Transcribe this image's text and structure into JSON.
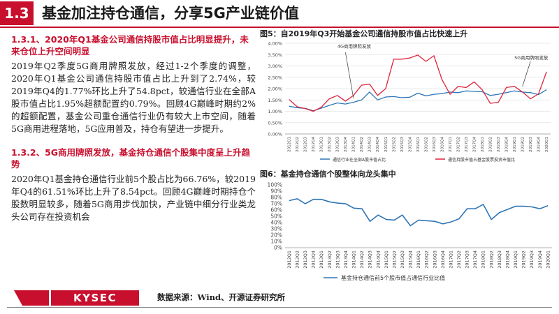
{
  "header": {
    "section_number": "1.3",
    "title": "基金加注持仓通信，分享5G产业链价值"
  },
  "left": {
    "s1_title": "1.3.1、2020年Q1基金公司通信持股市值占比明显提升，未来仓位上升空间明显",
    "s1_body": "2019年Q2季度5G商用牌照发放，经过1-2个季度的调整，2020年Q1基金公司通信持股市值占比上升到了2.74%，较2019年Q4的1.77%环比上升了54.8pct，较通信行业在全部A股市值占比1.95%超额配置约0.79%。回顾4G巅峰时期约2%的超额配置，基金公司重仓通信行业仍有较大上市空间，随着5G商用进程落地，5G应用普及，持仓有望进一步提升。",
    "s2_title": "1.3.2、5G商用牌照发放，基金持仓通信个股集中度呈上升趋势",
    "s2_body": "2020年Q1基金持仓通信行业前5个股占比为66.76%，较2019年Q4的61.51%环比上升了8.54pct。回顾4G巅峰时期持仓个股数明显较多，随着5G商用步伐加快，产业链中细分行业类龙头公司存在投资机会"
  },
  "fig5": {
    "title": "图5：自2019年Q3开始基金公司通信持股市值占比快速上升"
  },
  "fig6": {
    "title": "图6：基金持仓通信个股整体向龙头集中"
  },
  "footer": {
    "logo": "KYSEC",
    "source": "数据来源：Wind、开源证券研究所"
  },
  "chart_data": [
    {
      "type": "line",
      "title": "",
      "ylim": [
        0,
        4
      ],
      "y_ticks": [
        "0.00%",
        "0.50%",
        "1.00%",
        "1.50%",
        "2.00%",
        "2.50%",
        "3.00%",
        "3.50%",
        "4.00%"
      ],
      "x": [
        "2012Q1",
        "2012Q2",
        "2012Q3",
        "2012Q4",
        "2013Q1",
        "2013Q2",
        "2013Q3",
        "2013Q4",
        "2014Q1",
        "2014Q2",
        "2014Q3",
        "2014Q4",
        "2015Q1",
        "2015Q2",
        "2015Q3",
        "2015Q4",
        "2016Q1",
        "2016Q2",
        "2016Q3",
        "2016Q4",
        "2017Q1",
        "2017Q2",
        "2017Q3",
        "2017Q4",
        "2018Q1",
        "2018Q2",
        "2018Q3",
        "2018Q4",
        "2019Q1",
        "2019Q2",
        "2019Q3",
        "2019Q4",
        "2020Q1"
      ],
      "series": [
        {
          "name": "通信行业在全部A股市值占比",
          "color": "#2e75b6",
          "values": [
            1.22,
            1.16,
            1.13,
            1.02,
            1.14,
            1.26,
            1.37,
            1.32,
            1.4,
            1.5,
            1.85,
            1.5,
            1.63,
            1.65,
            1.6,
            1.62,
            1.8,
            1.68,
            1.75,
            1.78,
            1.85,
            1.82,
            1.9,
            1.88,
            1.86,
            1.7,
            1.75,
            1.82,
            1.9,
            1.85,
            1.82,
            1.74,
            1.95
          ]
        },
        {
          "name": "通信持股市值占基金股票投资市值比",
          "color": "#e0233b",
          "values": [
            1.52,
            1.2,
            1.12,
            1.0,
            1.18,
            1.55,
            1.7,
            1.45,
            1.7,
            2.15,
            2.2,
            1.7,
            2.0,
            3.3,
            3.3,
            3.35,
            3.48,
            3.2,
            3.45,
            2.4,
            1.75,
            2.1,
            2.05,
            2.3,
            1.95,
            1.35,
            1.4,
            2.05,
            2.1,
            1.85,
            1.55,
            1.77,
            2.74
          ]
        }
      ],
      "annotations": [
        "4G商用牌照发放",
        "5G商用牌照发放"
      ]
    },
    {
      "type": "line",
      "title": "",
      "ylim": [
        0,
        100
      ],
      "y_ticks": [
        "0%",
        "10%",
        "20%",
        "30%",
        "40%",
        "50%",
        "60%",
        "70%",
        "80%",
        "90%",
        "100%"
      ],
      "x": [
        "2012Q1",
        "2012Q2",
        "2012Q3",
        "2012Q4",
        "2013Q1",
        "2013Q2",
        "2013Q3",
        "2013Q4",
        "2014Q1",
        "2014Q2",
        "2014Q3",
        "2014Q4",
        "2015Q1",
        "2015Q2",
        "2015Q3",
        "2015Q4",
        "2016Q1",
        "2016Q2",
        "2016Q3",
        "2016Q4",
        "2017Q1",
        "2017Q2",
        "2017Q3",
        "2017Q4",
        "2018Q1",
        "2018Q2",
        "2018Q3",
        "2018Q4",
        "2019Q1",
        "2019Q2",
        "2019Q3",
        "2019Q4",
        "2020Q1"
      ],
      "series": [
        {
          "name": "基金持仓通信前5个股市值占通信行业比值",
          "color": "#2e75b6",
          "values": [
            75,
            78,
            70,
            77,
            77,
            73,
            71,
            70,
            63,
            62,
            42,
            52,
            45,
            44,
            52,
            35,
            44,
            43,
            42,
            38,
            41,
            46,
            62,
            62,
            69,
            45,
            56,
            61,
            66,
            66,
            65,
            62,
            67
          ]
        }
      ]
    }
  ]
}
